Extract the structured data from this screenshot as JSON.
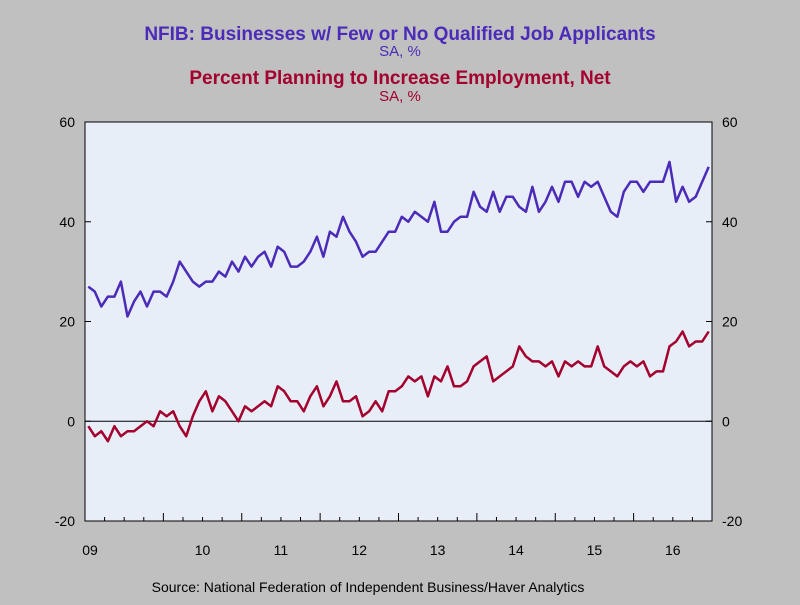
{
  "chart_data": {
    "type": "line",
    "titles": [
      {
        "text": "NFIB: Businesses w/ Few or No Qualified Job Applicants",
        "subtitle": "SA, %",
        "color": "#4B2BB8"
      },
      {
        "text": "Percent Planning to Increase Employment, Net",
        "subtitle": "SA, %",
        "color": "#A3002E"
      }
    ],
    "source": "Source:  National Federation of Independent Business/Haver Analytics",
    "ylim": [
      -20,
      60
    ],
    "yticks": [
      60,
      40,
      20,
      0,
      -20
    ],
    "x_tick_labels": [
      "09",
      "10",
      "11",
      "12",
      "13",
      "14",
      "15",
      "16"
    ],
    "x_start": 2009,
    "x_end": 2017,
    "grid": false,
    "zero_line": true,
    "plot_background": "#E8EEF8",
    "series": [
      {
        "name": "NFIB: Businesses w/ Few or No Qualified Job Applicants",
        "color": "#4B2BB8",
        "values": [
          27,
          26,
          23,
          25,
          25,
          28,
          21,
          24,
          26,
          23,
          26,
          26,
          25,
          28,
          32,
          30,
          28,
          27,
          28,
          28,
          30,
          29,
          32,
          30,
          33,
          31,
          33,
          34,
          31,
          35,
          34,
          31,
          31,
          32,
          34,
          37,
          33,
          38,
          37,
          41,
          38,
          36,
          33,
          34,
          34,
          36,
          38,
          38,
          41,
          40,
          42,
          41,
          40,
          44,
          38,
          38,
          40,
          41,
          41,
          46,
          43,
          42,
          46,
          42,
          45,
          45,
          43,
          42,
          47,
          42,
          44,
          47,
          44,
          48,
          48,
          45,
          48,
          47,
          48,
          45,
          42,
          41,
          46,
          48,
          48,
          46,
          48,
          48,
          48,
          52,
          44,
          47,
          44,
          45,
          48,
          51
        ]
      },
      {
        "name": "Percent Planning to Increase Employment, Net",
        "color": "#A3002E",
        "values": [
          -1,
          -3,
          -2,
          -4,
          -1,
          -3,
          -2,
          -2,
          -1,
          0,
          -1,
          2,
          1,
          2,
          -1,
          -3,
          1,
          4,
          6,
          2,
          5,
          4,
          2,
          0,
          3,
          2,
          3,
          4,
          3,
          7,
          6,
          4,
          4,
          2,
          5,
          7,
          3,
          5,
          8,
          4,
          4,
          5,
          1,
          2,
          4,
          2,
          6,
          6,
          7,
          9,
          8,
          9,
          5,
          9,
          8,
          11,
          7,
          7,
          8,
          11,
          12,
          13,
          8,
          9,
          10,
          11,
          15,
          13,
          12,
          12,
          11,
          12,
          9,
          12,
          11,
          12,
          11,
          11,
          15,
          11,
          10,
          9,
          11,
          12,
          11,
          12,
          9,
          10,
          10,
          15,
          16,
          18,
          15,
          16,
          16,
          18
        ]
      }
    ]
  }
}
